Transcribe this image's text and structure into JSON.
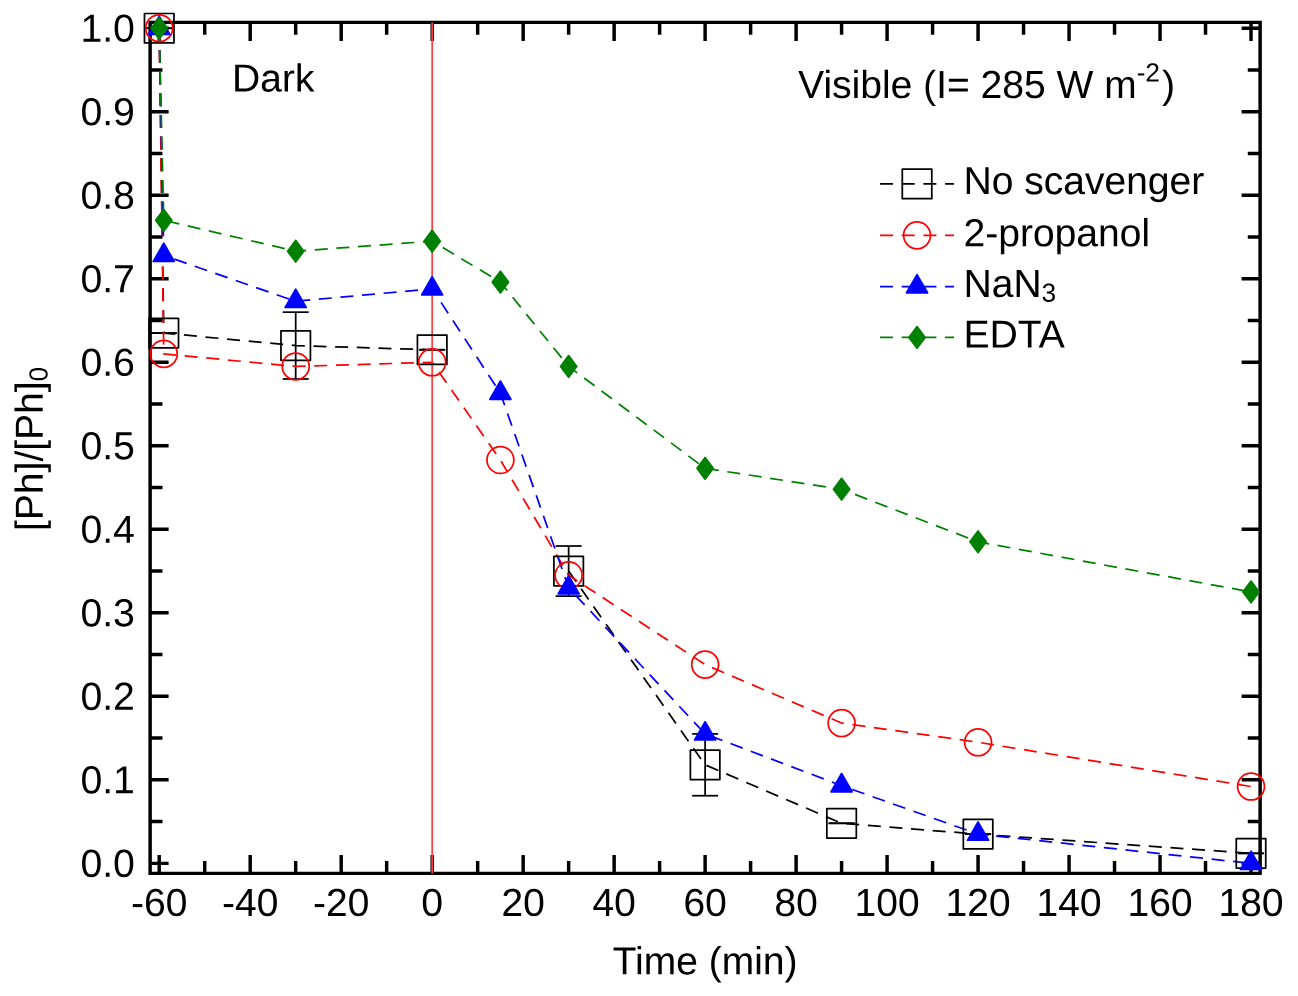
{
  "chart_data": {
    "type": "line",
    "xlabel": "Time (min)",
    "ylabel": "[Ph]/[Ph]$_{0}$",
    "x": [
      -60,
      -59,
      -30,
      0,
      15,
      30,
      60,
      90,
      120,
      180
    ],
    "series": [
      {
        "name": "No scavenger",
        "color": "#000000",
        "marker": "square",
        "values": [
          1.0,
          0.635,
          0.62,
          0.615,
          null,
          0.35,
          0.118,
          0.048,
          0.035,
          0.012
        ],
        "errors": [
          null,
          null,
          0.04,
          null,
          null,
          0.03,
          0.037,
          null,
          null,
          null
        ]
      },
      {
        "name": "2-propanol",
        "color": "#ff0000",
        "marker": "circle",
        "values": [
          1.0,
          0.61,
          0.595,
          0.6,
          0.483,
          0.345,
          0.238,
          0.168,
          0.145,
          0.092
        ]
      },
      {
        "name": "NaN$_{3}$",
        "color": "#0000ff",
        "marker": "triangle",
        "values": [
          1.0,
          0.728,
          0.673,
          0.688,
          0.563,
          0.33,
          0.155,
          0.093,
          0.035,
          0.0
        ]
      },
      {
        "name": "EDTA",
        "color": "#008000",
        "marker": "diamond",
        "values": [
          1.0,
          0.77,
          0.733,
          0.745,
          0.696,
          0.595,
          0.473,
          0.448,
          0.385,
          0.325
        ]
      }
    ],
    "line_style": "dashed",
    "xlim": [
      -62,
      182
    ],
    "ylim": [
      -0.012,
      1.007
    ],
    "xticks": [
      -60,
      -40,
      -20,
      0,
      20,
      40,
      60,
      80,
      100,
      120,
      140,
      160,
      180
    ],
    "yticks": [
      {
        "value": 0,
        "label": "0.0"
      },
      {
        "value": 0.1,
        "label": "0.1"
      },
      {
        "value": 0.2,
        "label": "0.2"
      },
      {
        "value": 0.3,
        "label": "0.3"
      },
      {
        "value": 0.4,
        "label": "0.4"
      },
      {
        "value": 0.5,
        "label": "0.5"
      },
      {
        "value": 0.6,
        "label": "0.6"
      },
      {
        "value": 0.7,
        "label": "0.7"
      },
      {
        "value": 0.8,
        "label": "0.8"
      },
      {
        "value": 0.9,
        "label": "0.9"
      },
      {
        "value": 1.0,
        "label": "1.0"
      }
    ],
    "ref_lines": [
      {
        "axis": "x",
        "value": 0,
        "color": "#ff4040"
      }
    ],
    "annotations": [
      "Dark",
      "Visible (I= 285 W m$^{-2}$)"
    ],
    "legend": "right",
    "grid": false
  }
}
